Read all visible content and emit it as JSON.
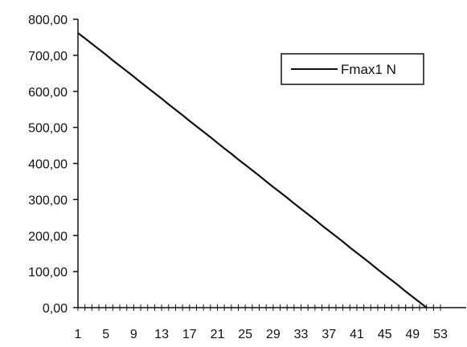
{
  "chart_data": {
    "type": "line",
    "title": "",
    "xlabel": "",
    "ylabel": "",
    "ylim": [
      0,
      800
    ],
    "y_ticks": [
      0,
      100,
      200,
      300,
      400,
      500,
      600,
      700,
      800
    ],
    "y_tick_labels": [
      "0,00",
      "100,00",
      "200,00",
      "300,00",
      "400,00",
      "500,00",
      "600,00",
      "700,00",
      "800,00"
    ],
    "x_range": [
      1,
      53
    ],
    "x_ticks": [
      1,
      5,
      9,
      13,
      17,
      21,
      25,
      29,
      33,
      37,
      41,
      45,
      49,
      53
    ],
    "x_tick_labels": [
      "1",
      "5",
      "9",
      "13",
      "17",
      "21",
      "25",
      "29",
      "33",
      "37",
      "41",
      "45",
      "49",
      "53"
    ],
    "grid": false,
    "legend_position": "top-right",
    "series": [
      {
        "name": "Fmax1 N",
        "color": "#111111",
        "x": [
          1,
          2,
          3,
          4,
          5,
          6,
          7,
          8,
          9,
          10,
          11,
          12,
          13,
          14,
          15,
          16,
          17,
          18,
          19,
          20,
          21,
          22,
          23,
          24,
          25,
          26,
          27,
          28,
          29,
          30,
          31,
          32,
          33,
          34,
          35,
          36,
          37,
          38,
          39,
          40,
          41,
          42,
          43,
          44,
          45,
          46,
          47,
          48,
          49,
          50,
          51
        ],
        "values": [
          762,
          747,
          732,
          717,
          702,
          686,
          671,
          656,
          641,
          625,
          610,
          595,
          580,
          564,
          549,
          534,
          518,
          503,
          488,
          473,
          457,
          442,
          427,
          411,
          396,
          381,
          366,
          350,
          335,
          320,
          305,
          289,
          274,
          259,
          244,
          228,
          213,
          198,
          183,
          167,
          152,
          137,
          122,
          106,
          91,
          76,
          61,
          45,
          30,
          15,
          0
        ]
      }
    ]
  }
}
